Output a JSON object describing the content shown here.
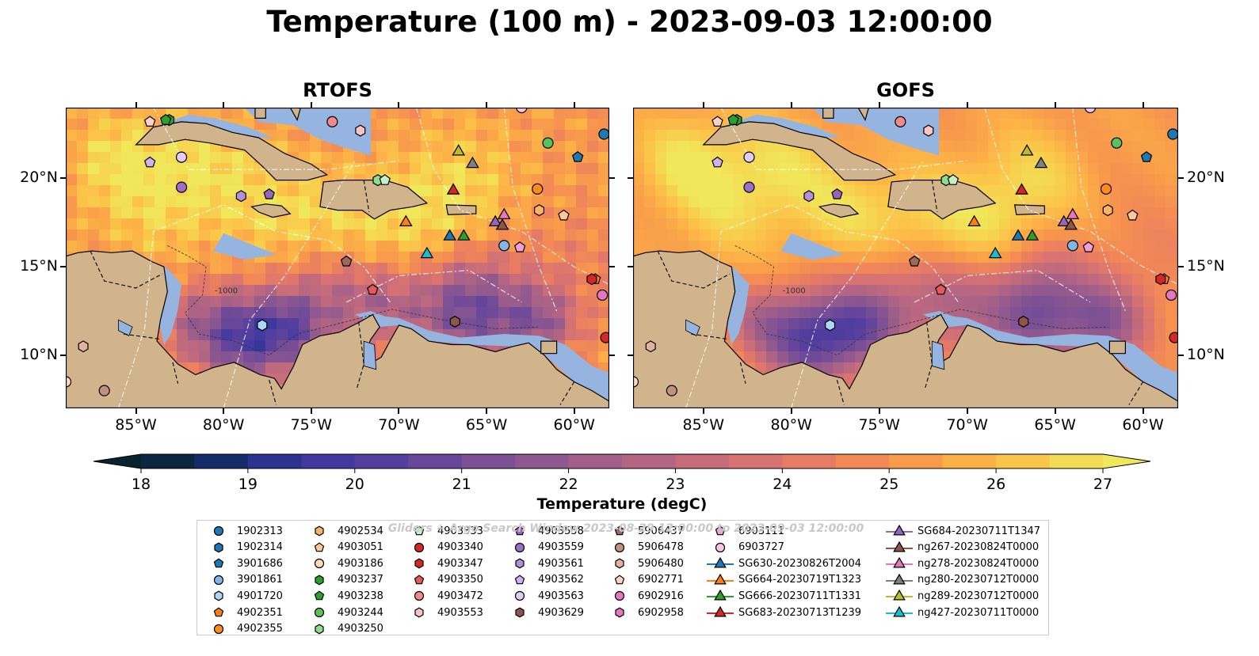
{
  "figure": {
    "title": "Temperature (100 m) - 2023-09-03 12:00:00"
  },
  "panels": [
    {
      "title": "RTOFS",
      "y_tick_side": "left"
    },
    {
      "title": "GOFS",
      "y_tick_side": "right"
    }
  ],
  "map": {
    "lon_range": [
      -89,
      -58
    ],
    "lat_range": [
      7,
      24
    ],
    "lon_ticks": [
      "85°W",
      "80°W",
      "75°W",
      "70°W",
      "65°W",
      "60°W"
    ],
    "lat_ticks": [
      "20°N",
      "15°N",
      "10°N"
    ],
    "contour_label": "-1000",
    "land_color": "#d2b48c",
    "shallow_color": "#95b5e0",
    "deep_color": "#06232e"
  },
  "colorbar": {
    "label": "Temperature (degC)",
    "min": 18,
    "max": 27,
    "ticks": [
      "18",
      "19",
      "20",
      "21",
      "22",
      "23",
      "24",
      "25",
      "26",
      "27"
    ],
    "colormap": "thermal",
    "extend": "both"
  },
  "legend": {
    "watermark": "Gliders + Argo Search Window 2023-08-29 12:00:00 to 2023-09-03 12:00:00",
    "entries": [
      {
        "label": "1902313",
        "marker": "circle",
        "color": "#1f77b4"
      },
      {
        "label": "1902314",
        "marker": "hexagon",
        "color": "#1f77b4"
      },
      {
        "label": "3901686",
        "marker": "pentagon",
        "color": "#1f77b4"
      },
      {
        "label": "3901861",
        "marker": "circle",
        "color": "#7fb8e6"
      },
      {
        "label": "4901720",
        "marker": "hexagon",
        "color": "#aed7f5"
      },
      {
        "label": "4902351",
        "marker": "pentagon",
        "color": "#ff7f0e"
      },
      {
        "label": "4902355",
        "marker": "circle",
        "color": "#ff8c1a"
      },
      {
        "label": "4902534",
        "marker": "hexagon",
        "color": "#ffb366"
      },
      {
        "label": "4903051",
        "marker": "pentagon",
        "color": "#ffc899"
      },
      {
        "label": "4903186",
        "marker": "circle",
        "color": "#ffdbb8"
      },
      {
        "label": "4903237",
        "marker": "hexagon",
        "color": "#2ca02c"
      },
      {
        "label": "4903238",
        "marker": "pentagon",
        "color": "#2ca02c"
      },
      {
        "label": "4903244",
        "marker": "circle",
        "color": "#58c458"
      },
      {
        "label": "4903250",
        "marker": "hexagon",
        "color": "#8fdc8f"
      },
      {
        "label": "4903333",
        "marker": "pentagon",
        "color": "#c8f0c8"
      },
      {
        "label": "4903340",
        "marker": "circle",
        "color": "#d62728"
      },
      {
        "label": "4903347",
        "marker": "hexagon",
        "color": "#d62728"
      },
      {
        "label": "4903350",
        "marker": "pentagon",
        "color": "#e8575a"
      },
      {
        "label": "4903472",
        "marker": "circle",
        "color": "#f08a8b"
      },
      {
        "label": "4903553",
        "marker": "hexagon",
        "color": "#f8c4c4"
      },
      {
        "label": "4903558",
        "marker": "pentagon",
        "color": "#9467bd"
      },
      {
        "label": "4903559",
        "marker": "circle",
        "color": "#9a6fc8"
      },
      {
        "label": "4903561",
        "marker": "hexagon",
        "color": "#b28fdc"
      },
      {
        "label": "4903562",
        "marker": "pentagon",
        "color": "#cdb3ee"
      },
      {
        "label": "4903563",
        "marker": "circle",
        "color": "#e0ccf6"
      },
      {
        "label": "4903629",
        "marker": "hexagon",
        "color": "#8c564b"
      },
      {
        "label": "5906437",
        "marker": "pentagon",
        "color": "#9c6a5c"
      },
      {
        "label": "5906478",
        "marker": "circle",
        "color": "#c0917f"
      },
      {
        "label": "5906480",
        "marker": "hexagon",
        "color": "#e1b39f"
      },
      {
        "label": "6902771",
        "marker": "pentagon",
        "color": "#f9d4c4"
      },
      {
        "label": "6902916",
        "marker": "circle",
        "color": "#e377c2"
      },
      {
        "label": "6902958",
        "marker": "hexagon",
        "color": "#e377c2"
      },
      {
        "label": "6903111",
        "marker": "pentagon",
        "color": "#f0a0d6"
      },
      {
        "label": "6903727",
        "marker": "circle",
        "color": "#f8c6e6"
      },
      {
        "label": "SG630-20230826T2004",
        "marker": "triangle",
        "color": "#1f77b4"
      },
      {
        "label": "SG664-20230719T1323",
        "marker": "triangle",
        "color": "#ff7f0e"
      },
      {
        "label": "SG666-20230711T1331",
        "marker": "triangle",
        "color": "#2ca02c"
      },
      {
        "label": "SG683-20230713T1239",
        "marker": "triangle",
        "color": "#d62728"
      },
      {
        "label": "SG684-20230711T1347",
        "marker": "triangle",
        "color": "#9467bd"
      },
      {
        "label": "ng267-20230824T0000",
        "marker": "triangle",
        "color": "#8c564b"
      },
      {
        "label": "ng278-20230824T0000",
        "marker": "triangle",
        "color": "#e377c2"
      },
      {
        "label": "ng280-20230712T0000",
        "marker": "triangle",
        "color": "#7f7f7f"
      },
      {
        "label": "ng289-20230712T0000",
        "marker": "triangle",
        "color": "#bcbd22"
      },
      {
        "label": "ng427-20230711T0000",
        "marker": "triangle",
        "color": "#17becf"
      }
    ]
  },
  "observations": [
    {
      "label": "1902313",
      "lon": -58.3,
      "lat": 22.5
    },
    {
      "label": "3901686",
      "lon": -59.8,
      "lat": 21.2
    },
    {
      "label": "3901861",
      "lon": -64.0,
      "lat": 16.2
    },
    {
      "label": "4901720",
      "lon": -77.8,
      "lat": 11.7
    },
    {
      "label": "4902351",
      "lon": -58.8,
      "lat": 14.3
    },
    {
      "label": "4902355",
      "lon": -62.1,
      "lat": 19.4
    },
    {
      "label": "4902534",
      "lon": -62.0,
      "lat": 18.2
    },
    {
      "label": "4903051",
      "lon": -60.6,
      "lat": 17.9
    },
    {
      "label": "4903186",
      "lon": -89.0,
      "lat": 8.5
    },
    {
      "label": "4903237",
      "lon": -83.1,
      "lat": 23.3
    },
    {
      "label": "4903238",
      "lon": -83.3,
      "lat": 23.3
    },
    {
      "label": "4903244",
      "lon": -61.5,
      "lat": 22.0
    },
    {
      "label": "4903250",
      "lon": -71.2,
      "lat": 19.9
    },
    {
      "label": "4903333",
      "lon": -70.8,
      "lat": 19.9
    },
    {
      "label": "4903340",
      "lon": -58.2,
      "lat": 11.0
    },
    {
      "label": "4903347",
      "lon": -59.0,
      "lat": 14.3
    },
    {
      "label": "4903350",
      "lon": -71.5,
      "lat": 13.7
    },
    {
      "label": "4903472",
      "lon": -73.8,
      "lat": 23.2
    },
    {
      "label": "4903553",
      "lon": -72.2,
      "lat": 22.7
    },
    {
      "label": "4903558",
      "lon": -77.4,
      "lat": 19.1
    },
    {
      "label": "4903559",
      "lon": -82.4,
      "lat": 19.5
    },
    {
      "label": "4903561",
      "lon": -79.0,
      "lat": 19.0
    },
    {
      "label": "4903562",
      "lon": -84.2,
      "lat": 20.9
    },
    {
      "label": "4903563",
      "lon": -82.4,
      "lat": 21.2
    },
    {
      "label": "4903629",
      "lon": -66.8,
      "lat": 11.9
    },
    {
      "label": "5906437",
      "lon": -73.0,
      "lat": 15.3
    },
    {
      "label": "5906478",
      "lon": -86.8,
      "lat": 8.0
    },
    {
      "label": "5906480",
      "lon": -88.0,
      "lat": 10.5
    },
    {
      "label": "6902771",
      "lon": -84.2,
      "lat": 23.2
    },
    {
      "label": "6902916",
      "lon": -58.4,
      "lat": 13.4
    },
    {
      "label": "6903111",
      "lon": -63.1,
      "lat": 16.1
    },
    {
      "label": "6903727",
      "lon": -63.0,
      "lat": 24.0
    },
    {
      "label": "SG630-20230826T2004",
      "lon": -67.1,
      "lat": 16.8
    },
    {
      "label": "SG664-20230719T1323",
      "lon": -69.6,
      "lat": 17.6
    },
    {
      "label": "SG666-20230711T1331",
      "lon": -66.3,
      "lat": 16.8
    },
    {
      "label": "SG683-20230713T1239",
      "lon": -66.9,
      "lat": 19.4
    },
    {
      "label": "SG684-20230711T1347",
      "lon": -64.5,
      "lat": 17.6
    },
    {
      "label": "ng267-20230824T0000",
      "lon": -64.1,
      "lat": 17.4
    },
    {
      "label": "ng278-20230824T0000",
      "lon": -64.0,
      "lat": 18.0
    },
    {
      "label": "ng280-20230712T0000",
      "lon": -65.8,
      "lat": 20.9
    },
    {
      "label": "ng289-20230712T0000",
      "lon": -66.6,
      "lat": 21.6
    },
    {
      "label": "ng427-20230711T0000",
      "lon": -68.4,
      "lat": 15.8
    }
  ]
}
